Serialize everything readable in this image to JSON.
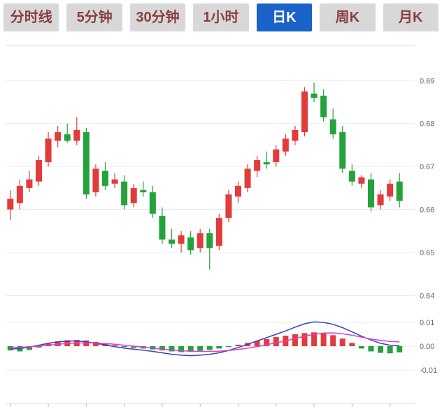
{
  "tabs": {
    "items": [
      {
        "label": "分时线",
        "active": false
      },
      {
        "label": "5分钟",
        "active": false
      },
      {
        "label": "30分钟",
        "active": false
      },
      {
        "label": "1小时",
        "active": false
      },
      {
        "label": "日K",
        "active": true
      },
      {
        "label": "周K",
        "active": false
      },
      {
        "label": "月K",
        "active": false
      }
    ]
  },
  "colors": {
    "up": "#e23b3b",
    "down": "#24a23c",
    "dif_line": "#3340cc",
    "dea_line": "#e13ec4",
    "grid": "#ececec",
    "frame": "#d9d9d9",
    "axis_text": "#666666",
    "tab_bg": "#d8d8d8",
    "tab_text": "#8b3e3e",
    "tab_active_bg": "#1a63c8",
    "tab_active_text": "#ffffff"
  },
  "chart_data": {
    "type": "candlestick+macd",
    "title": "",
    "interval_selected": "日K",
    "legend_position": "none",
    "grid": true,
    "price_axis_ticks": [
      "0.69",
      "0.68",
      "0.67",
      "0.66",
      "0.65",
      "0.64"
    ],
    "macd_axis_ticks": [
      "0.01",
      "0.00",
      "-0.01"
    ],
    "price_range": [
      0.636,
      0.6982
    ],
    "macd_range": [
      -0.013,
      0.013
    ],
    "candles_ohlc": [
      [
        0.66,
        0.6645,
        0.6575,
        0.6625
      ],
      [
        0.6615,
        0.667,
        0.66,
        0.6655
      ],
      [
        0.665,
        0.669,
        0.664,
        0.667
      ],
      [
        0.6665,
        0.6725,
        0.6655,
        0.6715
      ],
      [
        0.671,
        0.678,
        0.67,
        0.6765
      ],
      [
        0.676,
        0.6795,
        0.6745,
        0.678
      ],
      [
        0.6775,
        0.68,
        0.6755,
        0.676
      ],
      [
        0.676,
        0.6815,
        0.675,
        0.6785
      ],
      [
        0.678,
        0.679,
        0.6625,
        0.6635
      ],
      [
        0.664,
        0.6705,
        0.663,
        0.6695
      ],
      [
        0.669,
        0.671,
        0.6645,
        0.6655
      ],
      [
        0.666,
        0.6685,
        0.665,
        0.667
      ],
      [
        0.6665,
        0.668,
        0.66,
        0.661
      ],
      [
        0.6615,
        0.666,
        0.6605,
        0.665
      ],
      [
        0.6645,
        0.6665,
        0.663,
        0.664
      ],
      [
        0.664,
        0.6655,
        0.658,
        0.659
      ],
      [
        0.6585,
        0.6605,
        0.652,
        0.653
      ],
      [
        0.653,
        0.6555,
        0.651,
        0.652
      ],
      [
        0.652,
        0.655,
        0.65,
        0.654
      ],
      [
        0.6535,
        0.655,
        0.6495,
        0.6505
      ],
      [
        0.651,
        0.6555,
        0.65,
        0.6545
      ],
      [
        0.6545,
        0.6555,
        0.646,
        0.651
      ],
      [
        0.6515,
        0.659,
        0.6505,
        0.658
      ],
      [
        0.658,
        0.6645,
        0.657,
        0.6635
      ],
      [
        0.663,
        0.6665,
        0.6615,
        0.6655
      ],
      [
        0.665,
        0.6705,
        0.664,
        0.6695
      ],
      [
        0.669,
        0.6725,
        0.6675,
        0.6715
      ],
      [
        0.671,
        0.6735,
        0.6695,
        0.6705
      ],
      [
        0.671,
        0.675,
        0.67,
        0.674
      ],
      [
        0.6735,
        0.6775,
        0.6725,
        0.6765
      ],
      [
        0.676,
        0.6795,
        0.675,
        0.6785
      ],
      [
        0.678,
        0.6885,
        0.677,
        0.6875
      ],
      [
        0.687,
        0.6895,
        0.685,
        0.686
      ],
      [
        0.6865,
        0.688,
        0.6805,
        0.6815
      ],
      [
        0.681,
        0.6835,
        0.6765,
        0.6775
      ],
      [
        0.678,
        0.6795,
        0.6685,
        0.6695
      ],
      [
        0.669,
        0.6705,
        0.6655,
        0.6665
      ],
      [
        0.666,
        0.668,
        0.665,
        0.6675
      ],
      [
        0.667,
        0.6685,
        0.6595,
        0.6605
      ],
      [
        0.661,
        0.6645,
        0.66,
        0.6635
      ],
      [
        0.663,
        0.667,
        0.662,
        0.666
      ],
      [
        0.6665,
        0.6685,
        0.6605,
        0.662
      ]
    ],
    "macd": {
      "histogram": [
        -0.0018,
        -0.0022,
        -0.0016,
        -0.0006,
        0.001,
        0.002,
        0.0025,
        0.0026,
        0.0024,
        0.0018,
        0.001,
        0.0004,
        -0.0004,
        -0.0008,
        -0.001,
        -0.0014,
        -0.0018,
        -0.0022,
        -0.0025,
        -0.0024,
        -0.002,
        -0.0016,
        -0.001,
        -0.0004,
        0.0006,
        0.0014,
        0.0022,
        0.003,
        0.0038,
        0.0044,
        0.005,
        0.0055,
        0.0058,
        0.0054,
        0.0046,
        0.0032,
        0.0014,
        -0.001,
        -0.0022,
        -0.0028,
        -0.003,
        -0.0026
      ],
      "dif": [
        -0.0012,
        -0.001,
        -0.0004,
        0.0004,
        0.0012,
        0.0018,
        0.0021,
        0.0022,
        0.0018,
        0.0012,
        0.0005,
        -0.0002,
        -0.0008,
        -0.0013,
        -0.0017,
        -0.0022,
        -0.0028,
        -0.0034,
        -0.0038,
        -0.004,
        -0.0038,
        -0.0034,
        -0.0028,
        -0.0018,
        -0.0006,
        0.0008,
        0.0022,
        0.0036,
        0.005,
        0.0064,
        0.008,
        0.0094,
        0.0102,
        0.01,
        0.0092,
        0.0078,
        0.006,
        0.0042,
        0.0026,
        0.0012,
        0.0004,
        0.0002
      ],
      "dea": [
        -0.0006,
        -0.0005,
        -0.0003,
        0.0,
        0.0004,
        0.0008,
        0.0011,
        0.0013,
        0.0014,
        0.0013,
        0.0011,
        0.0008,
        0.0004,
        0.0,
        -0.0004,
        -0.0008,
        -0.0012,
        -0.0016,
        -0.0019,
        -0.0021,
        -0.0022,
        -0.0022,
        -0.0021,
        -0.0018,
        -0.0014,
        -0.0008,
        -0.0002,
        0.0006,
        0.0014,
        0.0022,
        0.0032,
        0.0042,
        0.005,
        0.0055,
        0.0056,
        0.0052,
        0.0046,
        0.0038,
        0.003,
        0.0024,
        0.002,
        0.0018
      ]
    }
  }
}
